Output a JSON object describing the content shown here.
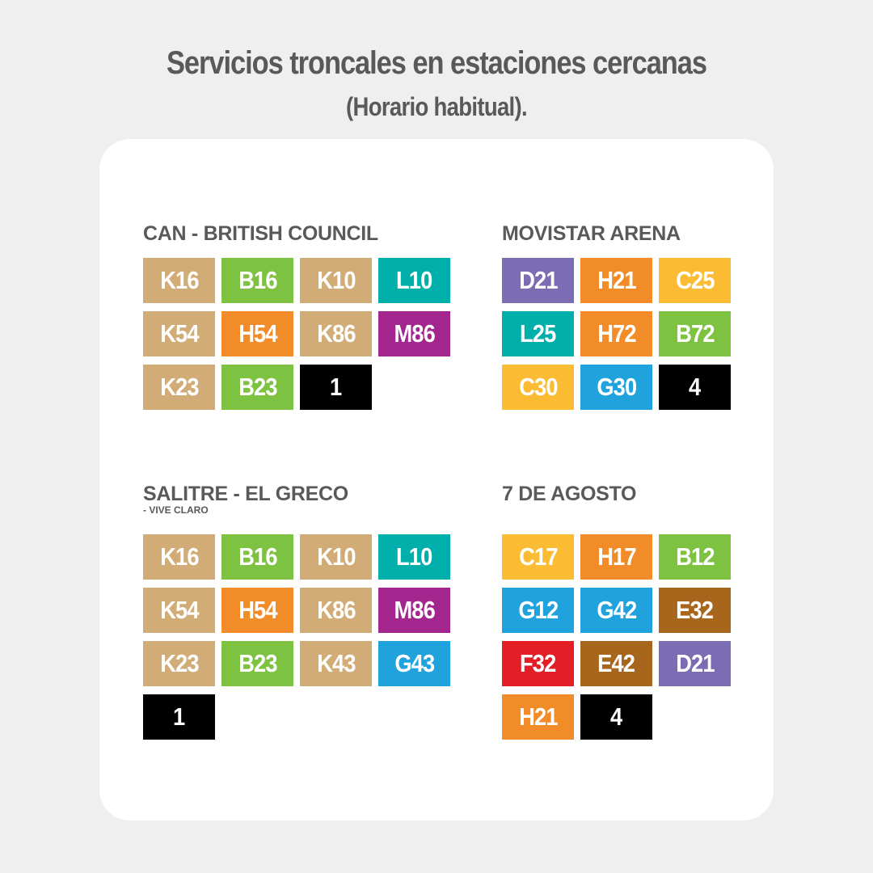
{
  "header": {
    "title": "Servicios troncales en estaciones cercanas",
    "subtitle": "(Horario habitual)."
  },
  "colors": {
    "background": "#efefef",
    "card": "#ffffff",
    "text": "#58595b",
    "tan": "#d1ac76",
    "green": "#7dc241",
    "teal": "#00aeaa",
    "orange": "#f28c28",
    "purple": "#a3268f",
    "black": "#000000",
    "violet": "#7c6cb4",
    "yellow": "#fbbc33",
    "blue": "#20a3dd",
    "brown": "#a8661c",
    "red": "#e31e26"
  },
  "stations": [
    {
      "name": "CAN - BRITISH COUNCIL",
      "note": "",
      "routes": [
        {
          "label": "K16",
          "color": "#d1ac76"
        },
        {
          "label": "B16",
          "color": "#7dc241"
        },
        {
          "label": "K10",
          "color": "#d1ac76"
        },
        {
          "label": "L10",
          "color": "#00aeaa"
        },
        {
          "label": "K54",
          "color": "#d1ac76"
        },
        {
          "label": "H54",
          "color": "#f28c28"
        },
        {
          "label": "K86",
          "color": "#d1ac76"
        },
        {
          "label": "M86",
          "color": "#a3268f"
        },
        {
          "label": "K23",
          "color": "#d1ac76"
        },
        {
          "label": "B23",
          "color": "#7dc241"
        },
        {
          "label": "1",
          "color": "#000000"
        }
      ]
    },
    {
      "name": "MOVISTAR ARENA",
      "note": "",
      "routes": [
        {
          "label": "D21",
          "color": "#7c6cb4"
        },
        {
          "label": "H21",
          "color": "#f28c28"
        },
        {
          "label": "C25",
          "color": "#fbbc33"
        },
        {
          "label": "L25",
          "color": "#00aeaa"
        },
        {
          "label": "H72",
          "color": "#f28c28"
        },
        {
          "label": "B72",
          "color": "#7dc241"
        },
        {
          "label": "C30",
          "color": "#fbbc33"
        },
        {
          "label": "G30",
          "color": "#20a3dd"
        },
        {
          "label": "4",
          "color": "#000000"
        }
      ]
    },
    {
      "name": "SALITRE - EL GRECO",
      "note": "- VIVE CLARO",
      "routes": [
        {
          "label": "K16",
          "color": "#d1ac76"
        },
        {
          "label": "B16",
          "color": "#7dc241"
        },
        {
          "label": "K10",
          "color": "#d1ac76"
        },
        {
          "label": "L10",
          "color": "#00aeaa"
        },
        {
          "label": "K54",
          "color": "#d1ac76"
        },
        {
          "label": "H54",
          "color": "#f28c28"
        },
        {
          "label": "K86",
          "color": "#d1ac76"
        },
        {
          "label": "M86",
          "color": "#a3268f"
        },
        {
          "label": "K23",
          "color": "#d1ac76"
        },
        {
          "label": "B23",
          "color": "#7dc241"
        },
        {
          "label": "K43",
          "color": "#d1ac76"
        },
        {
          "label": "G43",
          "color": "#20a3dd"
        },
        {
          "label": "1",
          "color": "#000000"
        }
      ]
    },
    {
      "name": "7 DE AGOSTO",
      "note": "",
      "routes": [
        {
          "label": "C17",
          "color": "#fbbc33"
        },
        {
          "label": "H17",
          "color": "#f28c28"
        },
        {
          "label": "B12",
          "color": "#7dc241"
        },
        {
          "label": "G12",
          "color": "#20a3dd"
        },
        {
          "label": "G42",
          "color": "#20a3dd"
        },
        {
          "label": "E32",
          "color": "#a8661c"
        },
        {
          "label": "F32",
          "color": "#e31e26"
        },
        {
          "label": "E42",
          "color": "#a8661c"
        },
        {
          "label": "D21",
          "color": "#7c6cb4"
        },
        {
          "label": "H21",
          "color": "#f28c28"
        },
        {
          "label": "4",
          "color": "#000000"
        }
      ]
    }
  ]
}
